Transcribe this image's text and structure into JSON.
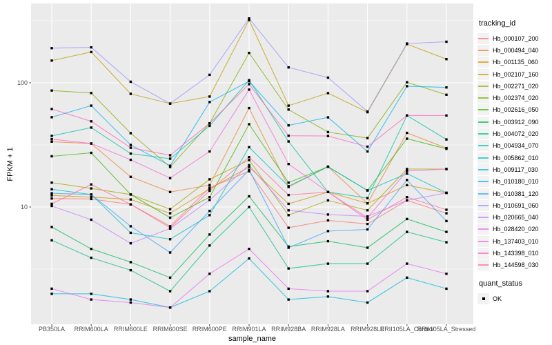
{
  "chart_data": {
    "type": "line",
    "title": "",
    "xlabel": "sample_name",
    "ylabel": "FPKM + 1",
    "y_scale": "log10",
    "grid": true,
    "legend_position": "right",
    "legend_title": "tracking_id",
    "quant_legend_title": "quant_status",
    "quant_legend_items": [
      "OK"
    ],
    "marker": "black-square",
    "y_ticks": [
      {
        "label": "100",
        "value": 100
      },
      {
        "label": "10",
        "value": 10
      }
    ],
    "y_minor_ticks": [
      3.162,
      31.62,
      316.2
    ],
    "ylim": [
      1.14,
      435
    ],
    "categories": [
      "PB350LA",
      "RRIM600LA",
      "RRIM600LE",
      "RRIM600SE",
      "RRIM600PE",
      "RRIM901LA",
      "RRIM928BA",
      "RRIM928LA",
      "RRIM928LE",
      "RRII105LA_Control",
      "RRII105LA_Stressed"
    ],
    "series": [
      {
        "name": "Hb_000107_200",
        "color": "#F8766D",
        "values": [
          11.7,
          11.6,
          10.5,
          7.0,
          14.3,
          19.4,
          6.8,
          7.8,
          7.3,
          11.3,
          8.9
        ]
      },
      {
        "name": "Hb_000494_040",
        "color": "#EA8331",
        "values": [
          33.6,
          32.4,
          17.5,
          13.2,
          15.0,
          62.6,
          14.5,
          21.1,
          10.7,
          39.5,
          29.8
        ]
      },
      {
        "name": "Hb_001135_060",
        "color": "#D89000",
        "values": [
          12.4,
          12.0,
          11.5,
          8.9,
          14.0,
          21.0,
          10.6,
          13.2,
          10.7,
          15.0,
          13.0
        ]
      },
      {
        "name": "Hb_002107_160",
        "color": "#C09B00",
        "values": [
          151,
          177,
          81.5,
          68,
          77.5,
          320,
          65.5,
          82.5,
          58,
          205,
          155
        ]
      },
      {
        "name": "Hb_002271_020",
        "color": "#A3A500",
        "values": [
          15.7,
          14.1,
          12.6,
          9.6,
          16.7,
          23.9,
          8.6,
          11.3,
          9.4,
          20.2,
          20.2
        ]
      },
      {
        "name": "Hb_002374_020",
        "color": "#7CAE00",
        "values": [
          86.7,
          82.8,
          39.3,
          21.0,
          47.2,
          174,
          60.9,
          40.1,
          35.9,
          101,
          80.1
        ]
      },
      {
        "name": "Hb_002616_050",
        "color": "#39B600",
        "values": [
          25.6,
          27.3,
          12.6,
          8.2,
          12.0,
          46.4,
          15.7,
          21.1,
          13.6,
          35.5,
          29.4
        ]
      },
      {
        "name": "Hb_003912_090",
        "color": "#00BB4E",
        "values": [
          6.9,
          4.6,
          3.6,
          2.7,
          6.0,
          12.2,
          4.8,
          5.3,
          4.7,
          8.0,
          6.3
        ]
      },
      {
        "name": "Hb_004072_020",
        "color": "#00BF7D",
        "values": [
          5.4,
          3.9,
          3.1,
          2.1,
          4.9,
          10.0,
          3.2,
          3.5,
          3.5,
          6.3,
          5.2
        ]
      },
      {
        "name": "Hb_004934_070",
        "color": "#00C1A3",
        "values": [
          37.4,
          43.6,
          26.9,
          24.5,
          45.0,
          105,
          33.7,
          13.2,
          11.8,
          54.5,
          35.0
        ]
      },
      {
        "name": "Hb_005862_010",
        "color": "#00BFC4",
        "values": [
          13.9,
          12.6,
          6.2,
          5.5,
          8.6,
          30.3,
          14.7,
          21.1,
          13.6,
          18.6,
          13.0
        ]
      },
      {
        "name": "Hb_009117_030",
        "color": "#00BAE0",
        "values": [
          2.0,
          2.0,
          1.8,
          1.55,
          2.1,
          3.85,
          1.8,
          1.9,
          1.7,
          2.7,
          2.2
        ]
      },
      {
        "name": "Hb_010180_010",
        "color": "#00B0F6",
        "values": [
          52.8,
          65.5,
          31.6,
          21.5,
          70,
          103,
          45.4,
          52.7,
          28,
          93.9,
          91.8
        ]
      },
      {
        "name": "Hb_010381_120",
        "color": "#35A2FF",
        "values": [
          12.9,
          12.6,
          7.0,
          4.3,
          9.3,
          19.9,
          4.7,
          6.4,
          6.6,
          16.5,
          7.7
        ]
      },
      {
        "name": "Hb_010691_060",
        "color": "#9590FF",
        "values": [
          190,
          193,
          102,
          68,
          116,
          330,
          133,
          110,
          58.7,
          207,
          214
        ]
      },
      {
        "name": "Hb_020665_040",
        "color": "#C77CFF",
        "values": [
          10.2,
          7.9,
          5.1,
          6.7,
          11.4,
          21.7,
          9.4,
          8.7,
          8.4,
          11.3,
          13.0
        ]
      },
      {
        "name": "Hb_028420_020",
        "color": "#E76BF3",
        "values": [
          2.2,
          1.8,
          1.7,
          1.55,
          2.9,
          4.6,
          2.2,
          2.1,
          2.1,
          3.5,
          2.9
        ]
      },
      {
        "name": "Hb_137403_010",
        "color": "#FA62DB",
        "values": [
          35.2,
          32.5,
          24.0,
          17.1,
          28.0,
          88.1,
          22.2,
          13.2,
          8.2,
          19.5,
          20.2
        ]
      },
      {
        "name": "Hb_143398_010",
        "color": "#FF62BC",
        "values": [
          61.5,
          49.0,
          30.0,
          26.1,
          47.2,
          97.5,
          37.5,
          37.3,
          30.6,
          54.5,
          54.5
        ]
      },
      {
        "name": "Hb_144598_030",
        "color": "#FF6A98",
        "values": [
          10.6,
          15.2,
          10.5,
          6.8,
          13.5,
          25.2,
          12.5,
          13.2,
          7.9,
          12.0,
          9.5
        ]
      }
    ]
  },
  "style": {
    "panel_bg": "#EBEBEB",
    "grid_color": "#FFFFFF",
    "axis_text_color": "#4D4D4D",
    "tick_color": "#333333",
    "marker_color": "#000000"
  }
}
